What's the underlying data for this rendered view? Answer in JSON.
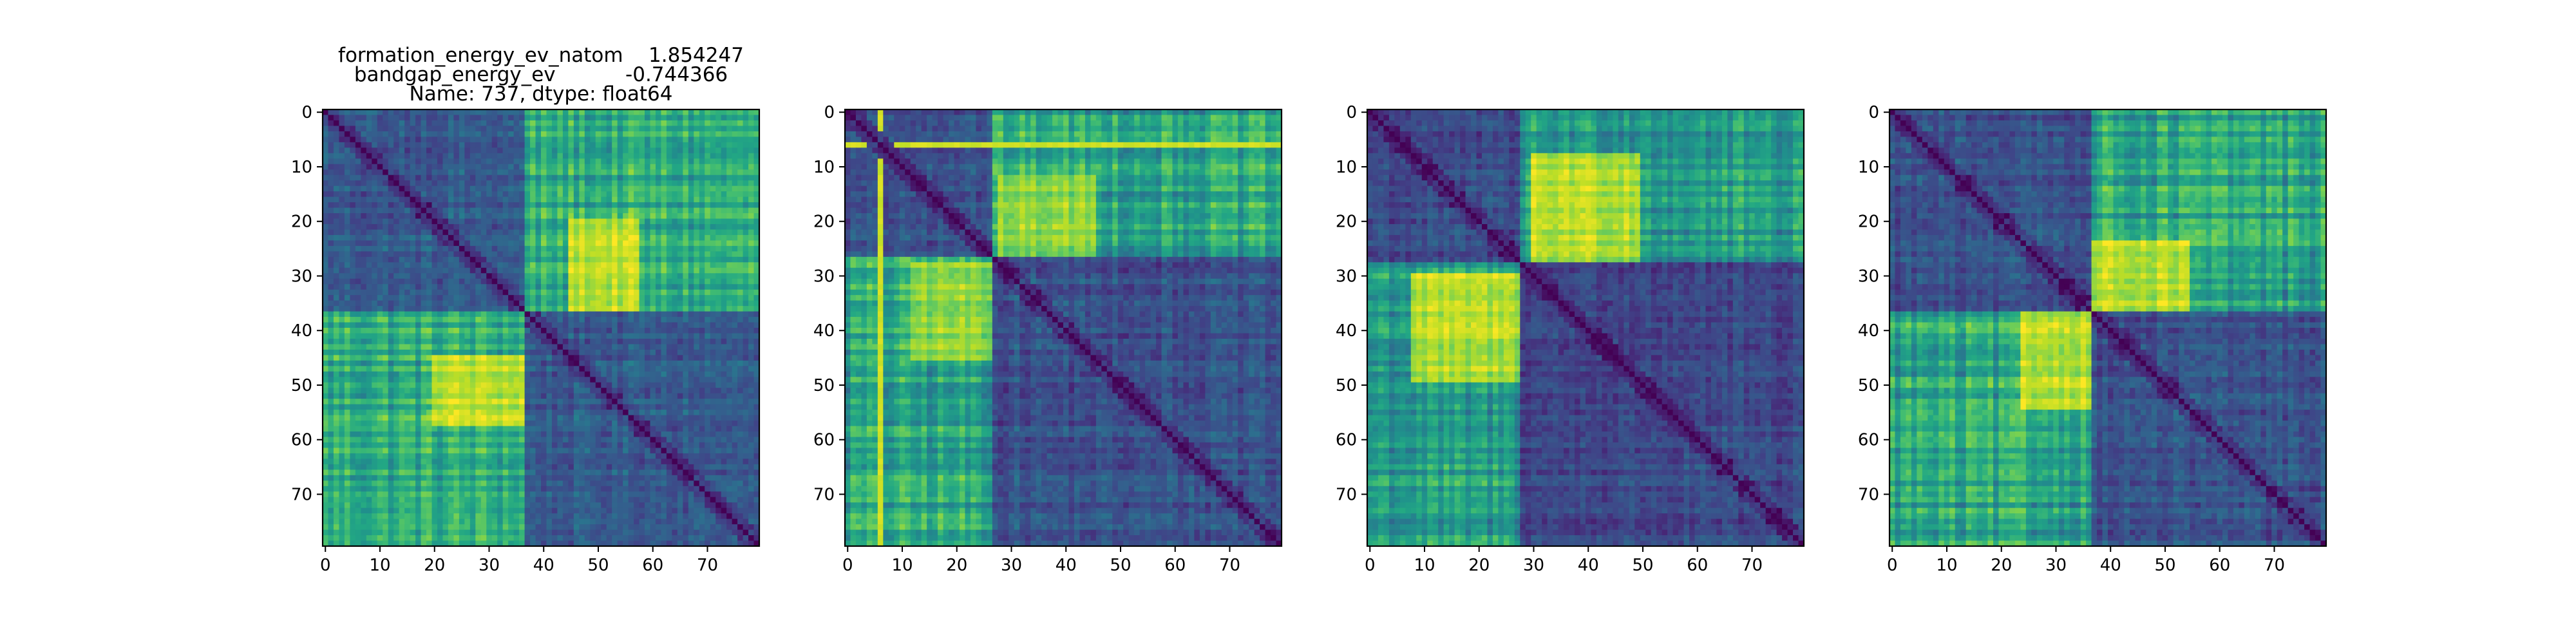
{
  "chart_data": [
    {
      "type": "heatmap",
      "title_lines": [
        "formation_energy_ev_natom    1.854247",
        "bandgap_energy_ev           -0.744366",
        "Name: 737, dtype: float64"
      ],
      "size": 80,
      "colormap": "viridis",
      "x_ticks": [
        0,
        10,
        20,
        30,
        40,
        50,
        60,
        70
      ],
      "y_ticks": [
        0,
        10,
        20,
        30,
        40,
        50,
        60,
        70
      ],
      "blocks": [
        [
          0,
          37
        ],
        [
          37,
          80
        ]
      ],
      "off_diagonal_level": 0.62,
      "within_block_level": 0.28,
      "hot_region": {
        "rows": [
          20,
          37
        ],
        "cols": [
          45,
          58
        ],
        "level": 0.9
      }
    },
    {
      "type": "heatmap",
      "title_lines": [],
      "size": 80,
      "colormap": "viridis",
      "x_ticks": [
        0,
        10,
        20,
        30,
        40,
        50,
        60,
        70
      ],
      "y_ticks": [
        0,
        10,
        20,
        30,
        40,
        50,
        60,
        70
      ],
      "blocks": [
        [
          0,
          27
        ],
        [
          27,
          80
        ]
      ],
      "off_diagonal_level": 0.58,
      "within_block_level": 0.25,
      "hot_region": {
        "rows": [
          12,
          27
        ],
        "cols": [
          28,
          46
        ],
        "level": 0.82
      },
      "bright_lines": [
        6
      ]
    },
    {
      "type": "heatmap",
      "title_lines": [],
      "size": 80,
      "colormap": "viridis",
      "x_ticks": [
        0,
        10,
        20,
        30,
        40,
        50,
        60,
        70
      ],
      "y_ticks": [
        0,
        10,
        20,
        30,
        40,
        50,
        60,
        70
      ],
      "blocks": [
        [
          0,
          28
        ],
        [
          28,
          80
        ]
      ],
      "off_diagonal_level": 0.55,
      "within_block_level": 0.22,
      "hot_region": {
        "rows": [
          8,
          28
        ],
        "cols": [
          30,
          50
        ],
        "level": 0.88
      }
    },
    {
      "type": "heatmap",
      "title_lines": [],
      "size": 80,
      "colormap": "viridis",
      "x_ticks": [
        0,
        10,
        20,
        30,
        40,
        50,
        60,
        70
      ],
      "y_ticks": [
        0,
        10,
        20,
        30,
        40,
        50,
        60,
        70
      ],
      "blocks": [
        [
          0,
          37
        ],
        [
          37,
          80
        ]
      ],
      "off_diagonal_level": 0.58,
      "within_block_level": 0.25,
      "hot_region": {
        "rows": [
          24,
          37
        ],
        "cols": [
          37,
          55
        ],
        "level": 0.9
      }
    }
  ]
}
